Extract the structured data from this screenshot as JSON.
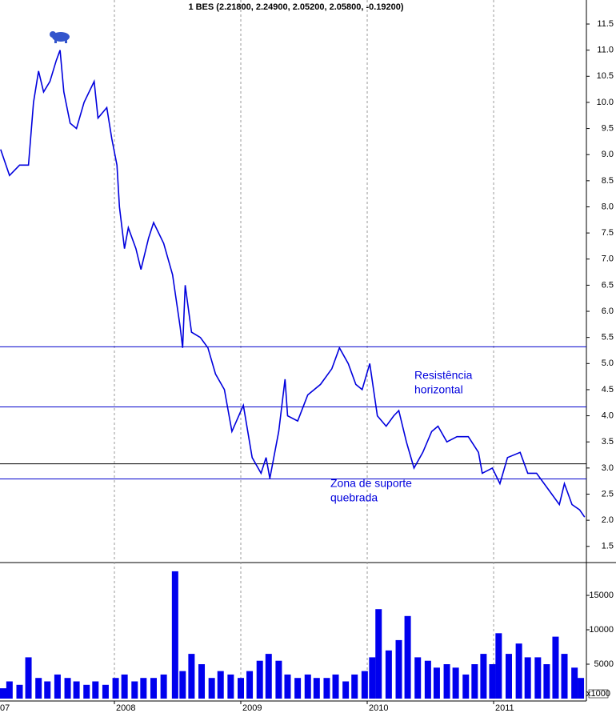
{
  "chart_data": [
    {
      "type": "line",
      "title": "1 BES (2.21800, 2.24900, 2.05200, 2.05800, -0.19200)",
      "x": [
        2007.1,
        2007.17,
        2007.25,
        2007.32,
        2007.36,
        2007.4,
        2007.44,
        2007.49,
        2007.54,
        2007.57,
        2007.6,
        2007.65,
        2007.7,
        2007.76,
        2007.84,
        2007.87,
        2007.94,
        2007.98,
        2008.02,
        2008.04,
        2008.08,
        2008.11,
        2008.17,
        2008.21,
        2008.27,
        2008.31,
        2008.39,
        2008.46,
        2008.52,
        2008.54,
        2008.56,
        2008.61,
        2008.68,
        2008.74,
        2008.8,
        2008.87,
        2008.93,
        2009.02,
        2009.09,
        2009.16,
        2009.2,
        2009.23,
        2009.3,
        2009.35,
        2009.37,
        2009.45,
        2009.53,
        2009.63,
        2009.72,
        2009.78,
        2009.85,
        2009.91,
        2009.96,
        2010.02,
        2010.08,
        2010.15,
        2010.21,
        2010.25,
        2010.31,
        2010.37,
        2010.44,
        2010.51,
        2010.56,
        2010.63,
        2010.71,
        2010.8,
        2010.88,
        2010.91,
        2010.99,
        2011.05,
        2011.11,
        2011.21,
        2011.27,
        2011.34,
        2011.43,
        2011.52,
        2011.56,
        2011.62,
        2011.68,
        2011.72
      ],
      "series": [
        {
          "name": "BES",
          "color": "#0000dd",
          "values": [
            9.1,
            8.6,
            8.8,
            8.8,
            10.0,
            10.6,
            10.2,
            10.4,
            10.8,
            11.0,
            10.2,
            9.6,
            9.5,
            10.0,
            10.4,
            9.7,
            9.9,
            9.3,
            8.8,
            8.0,
            7.2,
            7.6,
            7.2,
            6.8,
            7.4,
            7.7,
            7.3,
            6.7,
            5.7,
            5.3,
            6.5,
            5.6,
            5.5,
            5.3,
            4.8,
            4.5,
            3.7,
            4.2,
            3.2,
            2.9,
            3.2,
            2.8,
            3.7,
            4.7,
            4.0,
            3.9,
            4.4,
            4.6,
            4.9,
            5.3,
            5.0,
            4.6,
            4.5,
            5.0,
            4.0,
            3.8,
            4.0,
            4.1,
            3.5,
            3.0,
            3.3,
            3.7,
            3.8,
            3.5,
            3.6,
            3.6,
            3.3,
            2.9,
            3.0,
            2.7,
            3.2,
            3.3,
            2.9,
            2.9,
            2.6,
            2.3,
            2.7,
            2.3,
            2.2,
            2.06
          ]
        }
      ],
      "xlim": [
        2007.095,
        2011.734
      ],
      "xticks": [
        {
          "value": 2007,
          "label": "07"
        },
        2008,
        2009,
        2010,
        2011
      ],
      "ylim": [
        1.19,
        11.96
      ],
      "yticks": [
        1.5,
        {
          "value": 2,
          "label": "2.0"
        },
        2.5,
        {
          "value": 3,
          "label": "3.0"
        },
        3.5,
        {
          "value": 4,
          "label": "4.0"
        },
        4.5,
        {
          "value": 5,
          "label": "5.0"
        },
        5.5,
        {
          "value": 6,
          "label": "6.0"
        },
        6.5,
        {
          "value": 7,
          "label": "7.0"
        },
        7.5,
        {
          "value": 8,
          "label": "8.0"
        },
        8.5,
        {
          "value": 9,
          "label": "9.0"
        },
        9.5,
        {
          "value": 10,
          "label": "10.0"
        },
        10.5,
        {
          "value": 11,
          "label": "11.0"
        },
        11.5
      ],
      "hlines": [
        5.32,
        4.17,
        3.08,
        2.79
      ],
      "hline_colors": [
        "#0000cc",
        "#0000cc",
        "#000000",
        "#0000cc"
      ],
      "annotations": [
        [
          "Resistência",
          "horizontal"
        ],
        [
          "Zona de suporte",
          "quebrada"
        ]
      ],
      "annotation_color": "#0000dd"
    },
    {
      "type": "bar",
      "unit_label": "x1000",
      "color": "#0000ee",
      "x": [
        2007.1,
        2007.17,
        2007.25,
        2007.32,
        2007.4,
        2007.47,
        2007.55,
        2007.63,
        2007.7,
        2007.78,
        2007.85,
        2007.93,
        2008.01,
        2008.08,
        2008.16,
        2008.23,
        2008.31,
        2008.39,
        2008.48,
        2008.54,
        2008.61,
        2008.69,
        2008.77,
        2008.84,
        2008.92,
        2009.0,
        2009.07,
        2009.15,
        2009.22,
        2009.3,
        2009.37,
        2009.45,
        2009.53,
        2009.6,
        2009.68,
        2009.75,
        2009.83,
        2009.9,
        2009.98,
        2010.04,
        2010.09,
        2010.17,
        2010.25,
        2010.32,
        2010.4,
        2010.48,
        2010.55,
        2010.63,
        2010.7,
        2010.78,
        2010.85,
        2010.92,
        2010.99,
        2011.04,
        2011.12,
        2011.2,
        2011.27,
        2011.35,
        2011.42,
        2011.49,
        2011.56,
        2011.64,
        2011.69
      ],
      "values": [
        1500,
        2500,
        2000,
        6000,
        3000,
        2500,
        3500,
        3000,
        2500,
        2000,
        2500,
        2000,
        3000,
        3500,
        2500,
        3000,
        3000,
        3500,
        18500,
        4000,
        6500,
        5000,
        3000,
        4000,
        3500,
        3000,
        4000,
        5500,
        6500,
        5500,
        3500,
        3000,
        3500,
        3000,
        3000,
        3500,
        2500,
        3500,
        4000,
        6000,
        13000,
        7000,
        8500,
        12000,
        6000,
        5500,
        4500,
        5000,
        4500,
        3500,
        5000,
        6500,
        5000,
        9500,
        6500,
        8000,
        6000,
        6000,
        5000,
        9000,
        6500,
        4500,
        3000
      ],
      "xlim": [
        2007.095,
        2011.734
      ],
      "ylim": [
        0,
        19770
      ],
      "yticks": [
        5000,
        10000,
        15000
      ]
    }
  ]
}
